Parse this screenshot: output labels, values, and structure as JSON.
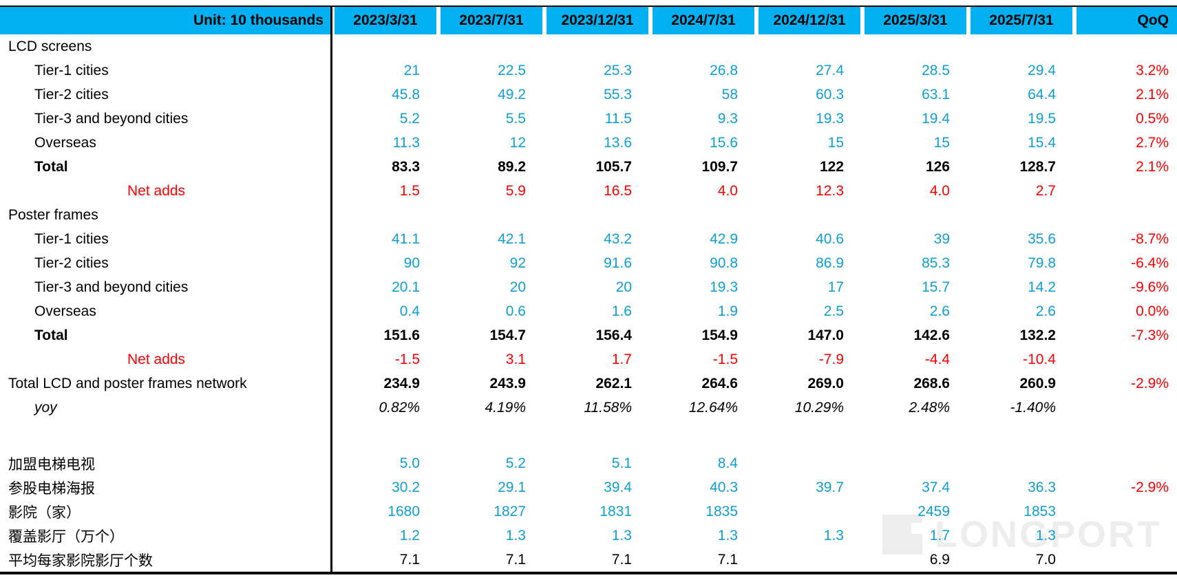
{
  "chart_data": {
    "type": "table",
    "unit_label": "Unit: 10 thousands",
    "date_columns": [
      "2023/3/31",
      "2023/7/31",
      "2023/12/31",
      "2024/7/31",
      "2024/12/31",
      "2025/3/31",
      "2025/7/31"
    ],
    "qoq_label": "QoQ",
    "rows": [
      {
        "label": "LCD screens",
        "style": "section",
        "values": [
          "",
          "",
          "",
          "",
          "",
          "",
          ""
        ],
        "qoq": ""
      },
      {
        "label": "Tier-1 cities",
        "style": "data",
        "values": [
          "21",
          "22.5",
          "25.3",
          "26.8",
          "27.4",
          "28.5",
          "29.4"
        ],
        "qoq": "3.2%"
      },
      {
        "label": "Tier-2 cities",
        "style": "data",
        "values": [
          "45.8",
          "49.2",
          "55.3",
          "58",
          "60.3",
          "63.1",
          "64.4"
        ],
        "qoq": "2.1%"
      },
      {
        "label": "Tier-3 and beyond cities",
        "style": "data",
        "values": [
          "5.2",
          "5.5",
          "11.5",
          "9.3",
          "19.3",
          "19.4",
          "19.5"
        ],
        "qoq": "0.5%"
      },
      {
        "label": "Overseas",
        "style": "data",
        "values": [
          "11.3",
          "12",
          "13.6",
          "15.6",
          "15",
          "15",
          "15.4"
        ],
        "qoq": "2.7%"
      },
      {
        "label": "Total",
        "style": "total",
        "values": [
          "83.3",
          "89.2",
          "105.7",
          "109.7",
          "122",
          "126",
          "128.7"
        ],
        "qoq": "2.1%"
      },
      {
        "label": "Net adds",
        "style": "netadds",
        "values": [
          "1.5",
          "5.9",
          "16.5",
          "4.0",
          "12.3",
          "4.0",
          "2.7"
        ],
        "qoq": ""
      },
      {
        "label": "Poster frames",
        "style": "section",
        "values": [
          "",
          "",
          "",
          "",
          "",
          "",
          ""
        ],
        "qoq": ""
      },
      {
        "label": "Tier-1 cities",
        "style": "data",
        "values": [
          "41.1",
          "42.1",
          "43.2",
          "42.9",
          "40.6",
          "39",
          "35.6"
        ],
        "qoq": "-8.7%"
      },
      {
        "label": "Tier-2 cities",
        "style": "data",
        "values": [
          "90",
          "92",
          "91.6",
          "90.8",
          "86.9",
          "85.3",
          "79.8"
        ],
        "qoq": "-6.4%"
      },
      {
        "label": "Tier-3 and beyond cities",
        "style": "data",
        "values": [
          "20.1",
          "20",
          "20",
          "19.3",
          "17",
          "15.7",
          "14.2"
        ],
        "qoq": "-9.6%"
      },
      {
        "label": "Overseas",
        "style": "data",
        "values": [
          "0.4",
          "0.6",
          "1.6",
          "1.9",
          "2.5",
          "2.6",
          "2.6"
        ],
        "qoq": "0.0%"
      },
      {
        "label": "Total",
        "style": "total",
        "values": [
          "151.6",
          "154.7",
          "156.4",
          "154.9",
          "147.0",
          "142.6",
          "132.2"
        ],
        "qoq": "-7.3%"
      },
      {
        "label": "Net adds",
        "style": "netadds",
        "values": [
          "-1.5",
          "3.1",
          "1.7",
          "-1.5",
          "-7.9",
          "-4.4",
          "-10.4"
        ],
        "qoq": ""
      },
      {
        "label": "Total LCD and poster  frames network",
        "style": "grand",
        "values": [
          "234.9",
          "243.9",
          "262.1",
          "264.6",
          "269.0",
          "268.6",
          "260.9"
        ],
        "qoq": "-2.9%"
      },
      {
        "label": "yoy",
        "style": "yoy",
        "values": [
          "0.82%",
          "4.19%",
          "11.58%",
          "12.64%",
          "10.29%",
          "2.48%",
          "-1.40%"
        ],
        "qoq": ""
      },
      {
        "label": "",
        "style": "blank",
        "values": [
          "",
          "",
          "",
          "",
          "",
          "",
          ""
        ],
        "qoq": ""
      },
      {
        "label": "加盟电梯电视",
        "style": "cn",
        "values": [
          "5.0",
          "5.2",
          "5.1",
          "8.4",
          "",
          "",
          ""
        ],
        "qoq": ""
      },
      {
        "label": "参股电梯海报",
        "style": "cn",
        "values": [
          "30.2",
          "29.1",
          "39.4",
          "40.3",
          "39.7",
          "37.4",
          "36.3"
        ],
        "qoq": "-2.9%"
      },
      {
        "label": "影院（家）",
        "style": "cn",
        "values": [
          "1680",
          "1827",
          "1831",
          "1835",
          "",
          "2459",
          "1853"
        ],
        "qoq": ""
      },
      {
        "label": "覆盖影厅（万个）",
        "style": "cn",
        "values": [
          "1.2",
          "1.3",
          "1.3",
          "1.3",
          "1.3",
          "1.7",
          "1.3"
        ],
        "qoq": ""
      },
      {
        "label": "平均每家影院影厅个数",
        "style": "cnblack",
        "values": [
          "7.1",
          "7.1",
          "7.1",
          "7.1",
          "",
          "6.9",
          "7.0"
        ],
        "qoq": ""
      }
    ]
  },
  "watermark": {
    "text": "LONGPORT"
  },
  "colors": {
    "header_bg": "#00b0f0",
    "value_blue": "#0f9ed5",
    "accent_red": "#ff0000"
  }
}
